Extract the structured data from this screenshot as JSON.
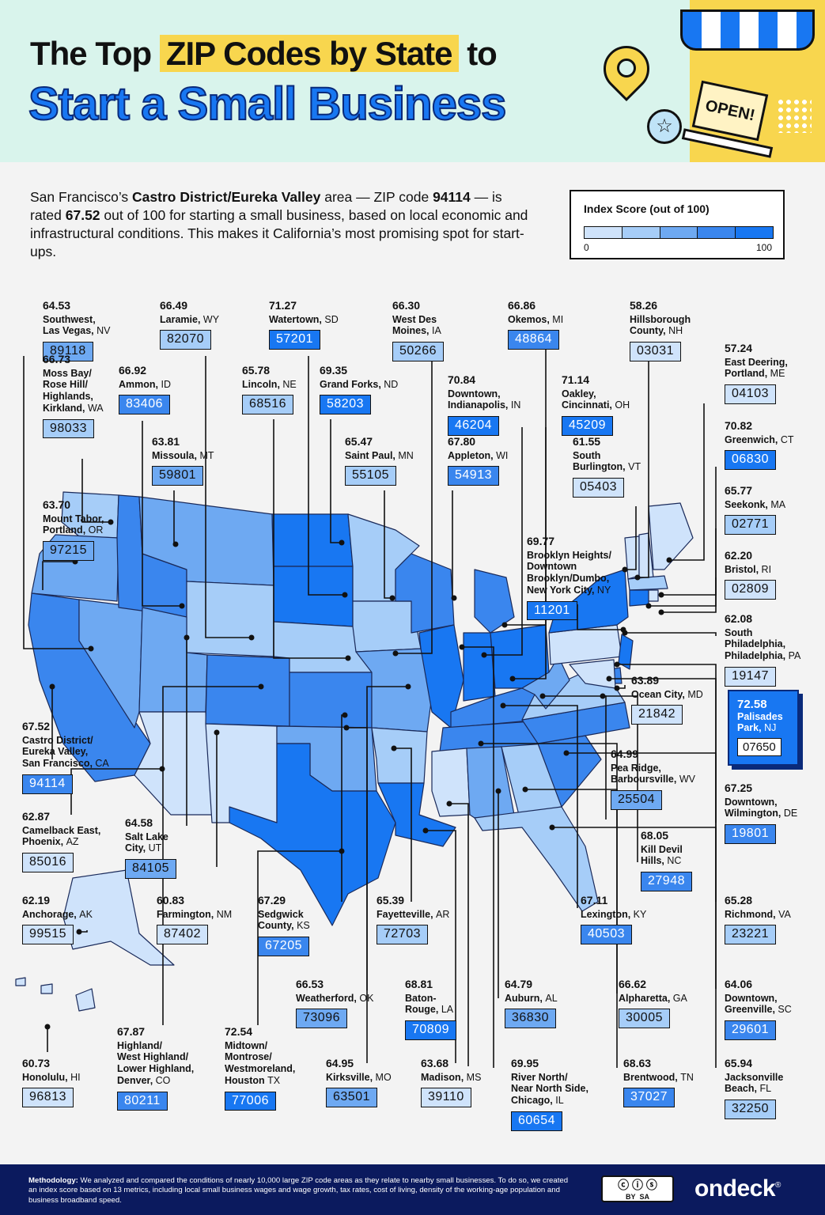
{
  "header": {
    "title_pre": "The Top ",
    "title_highlight": "ZIP Codes by State",
    "title_post": " to",
    "title_line2": "Start a Small Business",
    "sign_text": "OPEN!"
  },
  "intro": {
    "part1": "San Francisco’s ",
    "area": "Castro District/Eureka Valley",
    "part2": " area — ZIP code ",
    "zip": "94114",
    "part3": " — is rated ",
    "score": "67.52",
    "part4": " out of 100 for starting a small business, based on local economic and infrastructural conditions. This makes it California’s most promising spot for start-ups."
  },
  "legend": {
    "title": "Index Score (out of 100)",
    "min": "0",
    "max": "100",
    "colors": [
      "#cfe3fb",
      "#a6cdf8",
      "#6ea9f2",
      "#3a86ee",
      "#1877f2"
    ]
  },
  "map_colors": {
    "water_outline": "#1a2a5a",
    "c1": "#cfe3fb",
    "c2": "#a6cdf8",
    "c3": "#6ea9f2",
    "c4": "#3a86ee",
    "c5": "#1877f2"
  },
  "chart_data": {
    "type": "table",
    "columns": [
      "state",
      "area",
      "index_score",
      "zip"
    ],
    "rows": [
      [
        "NV",
        "Southwest, Las Vegas",
        64.53,
        "89118"
      ],
      [
        "WY",
        "Laramie",
        66.49,
        "82070"
      ],
      [
        "SD",
        "Watertown",
        71.27,
        "57201"
      ],
      [
        "IA",
        "West Des Moines",
        66.3,
        "50266"
      ],
      [
        "MI",
        "Okemos",
        66.86,
        "48864"
      ],
      [
        "NH",
        "Hillsborough County",
        58.26,
        "03031"
      ],
      [
        "WA",
        "Moss Bay/Rose Hill/Highlands, Kirkland",
        66.73,
        "98033"
      ],
      [
        "ID",
        "Ammon",
        66.92,
        "83406"
      ],
      [
        "NE",
        "Lincoln",
        65.78,
        "68516"
      ],
      [
        "ND",
        "Grand Forks",
        69.35,
        "58203"
      ],
      [
        "IN",
        "Downtown, Indianapolis",
        70.84,
        "46204"
      ],
      [
        "OH",
        "Oakley, Cincinnati",
        71.14,
        "45209"
      ],
      [
        "ME",
        "East Deering, Portland",
        57.24,
        "04103"
      ],
      [
        "MT",
        "Missoula",
        63.81,
        "59801"
      ],
      [
        "MN",
        "Saint Paul",
        65.47,
        "55105"
      ],
      [
        "WI",
        "Appleton",
        67.8,
        "54913"
      ],
      [
        "VT",
        "South Burlington",
        61.55,
        "05403"
      ],
      [
        "CT",
        "Greenwich",
        70.82,
        "06830"
      ],
      [
        "OR",
        "Mount Tabor, Portland",
        63.7,
        "97215"
      ],
      [
        "MA",
        "Seekonk",
        65.77,
        "02771"
      ],
      [
        "NY",
        "Brooklyn Heights/Downtown Brooklyn/Dumbo, New York City",
        69.77,
        "11201"
      ],
      [
        "RI",
        "Bristol",
        62.2,
        "02809"
      ],
      [
        "PA",
        "South Philadelphia, Philadelphia",
        62.08,
        "19147"
      ],
      [
        "NJ",
        "Palisades Park",
        72.58,
        "07650"
      ],
      [
        "MD",
        "Ocean City",
        63.89,
        "21842"
      ],
      [
        "CA",
        "Castro District/Eureka Valley, San Francisco",
        67.52,
        "94114"
      ],
      [
        "WV",
        "Pea Ridge, Barboursville",
        64.99,
        "25504"
      ],
      [
        "DE",
        "Downtown, Wilmington",
        67.25,
        "19801"
      ],
      [
        "AZ",
        "Camelback East, Phoenix",
        62.87,
        "85016"
      ],
      [
        "UT",
        "Salt Lake City",
        64.58,
        "84105"
      ],
      [
        "NC",
        "Kill Devil Hills",
        68.05,
        "27948"
      ],
      [
        "AK",
        "Anchorage",
        62.19,
        "99515"
      ],
      [
        "NM",
        "Farmington",
        60.83,
        "87402"
      ],
      [
        "KS",
        "Sedgwick County",
        67.29,
        "67205"
      ],
      [
        "AR",
        "Fayetteville",
        65.39,
        "72703"
      ],
      [
        "KY",
        "Lexington",
        67.11,
        "40503"
      ],
      [
        "VA",
        "Richmond",
        65.28,
        "23221"
      ],
      [
        "OK",
        "Weatherford",
        66.53,
        "73096"
      ],
      [
        "LA",
        "Baton-Rouge",
        68.81,
        "70809"
      ],
      [
        "AL",
        "Auburn",
        64.79,
        "36830"
      ],
      [
        "GA",
        "Alpharetta",
        66.62,
        "30005"
      ],
      [
        "SC",
        "Downtown, Greenville",
        64.06,
        "29601"
      ],
      [
        "HI",
        "Honolulu",
        60.73,
        "96813"
      ],
      [
        "CO",
        "Highland/West Highland/Lower Highland, Denver",
        67.87,
        "80211"
      ],
      [
        "TX",
        "Midtown/Montrose/Westmoreland, Houston",
        72.54,
        "77006"
      ],
      [
        "MO",
        "Kirksville",
        64.95,
        "63501"
      ],
      [
        "MS",
        "Madison",
        63.68,
        "39110"
      ],
      [
        "IL",
        "River North/Near North Side, Chicago",
        69.95,
        "60654"
      ],
      [
        "TN",
        "Brentwood",
        68.63,
        "37027"
      ],
      [
        "FL",
        "Jacksonville Beach",
        65.94,
        "32250"
      ]
    ]
  },
  "callouts": [
    {
      "id": "nv",
      "score": "64.53",
      "name": "Southwest,\nLas Vegas,",
      "st": "NV",
      "zip": "89118",
      "c": "c3"
    },
    {
      "id": "wy",
      "score": "66.49",
      "name": "Laramie,",
      "st": "WY",
      "zip": "82070",
      "c": "c2"
    },
    {
      "id": "sd",
      "score": "71.27",
      "name": "Watertown,",
      "st": "SD",
      "zip": "57201",
      "c": "c5"
    },
    {
      "id": "ia",
      "score": "66.30",
      "name": "West Des\nMoines,",
      "st": "IA",
      "zip": "50266",
      "c": "c2"
    },
    {
      "id": "mi",
      "score": "66.86",
      "name": "Okemos,",
      "st": "MI",
      "zip": "48864",
      "c": "c4"
    },
    {
      "id": "nh",
      "score": "58.26",
      "name": "Hillsborough\nCounty,",
      "st": "NH",
      "zip": "03031",
      "c": "c1"
    },
    {
      "id": "wa",
      "score": "66.73",
      "name": "Moss Bay/\nRose Hill/\nHighlands,\nKirkland,",
      "st": "WA",
      "zip": "98033",
      "c": "c2"
    },
    {
      "id": "id",
      "score": "66.92",
      "name": "Ammon,",
      "st": "ID",
      "zip": "83406",
      "c": "c4"
    },
    {
      "id": "ne",
      "score": "65.78",
      "name": "Lincoln,",
      "st": "NE",
      "zip": "68516",
      "c": "c2"
    },
    {
      "id": "nd",
      "score": "69.35",
      "name": "Grand Forks,",
      "st": "ND",
      "zip": "58203",
      "c": "c5"
    },
    {
      "id": "in",
      "score": "70.84",
      "name": "Downtown,\nIndianapolis,",
      "st": "IN",
      "zip": "46204",
      "c": "c5"
    },
    {
      "id": "oh",
      "score": "71.14",
      "name": "Oakley,\nCincinnati,",
      "st": "OH",
      "zip": "45209",
      "c": "c5"
    },
    {
      "id": "me",
      "score": "57.24",
      "name": "East Deering,\nPortland,",
      "st": "ME",
      "zip": "04103",
      "c": "c1"
    },
    {
      "id": "mt",
      "score": "63.81",
      "name": "Missoula,",
      "st": "MT",
      "zip": "59801",
      "c": "c3"
    },
    {
      "id": "mn",
      "score": "65.47",
      "name": "Saint Paul,",
      "st": "MN",
      "zip": "55105",
      "c": "c2"
    },
    {
      "id": "wi",
      "score": "67.80",
      "name": "Appleton,",
      "st": "WI",
      "zip": "54913",
      "c": "c4"
    },
    {
      "id": "vt",
      "score": "61.55",
      "name": "South\nBurlington,",
      "st": "VT",
      "zip": "05403",
      "c": "c1"
    },
    {
      "id": "ct",
      "score": "70.82",
      "name": "Greenwich,",
      "st": "CT",
      "zip": "06830",
      "c": "c5"
    },
    {
      "id": "or",
      "score": "63.70",
      "name": "Mount Tabor,\nPortland,",
      "st": "OR",
      "zip": "97215",
      "c": "c3"
    },
    {
      "id": "ma",
      "score": "65.77",
      "name": "Seekonk,",
      "st": "MA",
      "zip": "02771",
      "c": "c2"
    },
    {
      "id": "ny",
      "score": "69.77",
      "name": "Brooklyn Heights/\nDowntown\nBrooklyn/Dumbo,\nNew York City,",
      "st": "NY",
      "zip": "11201",
      "c": "c5"
    },
    {
      "id": "ri",
      "score": "62.20",
      "name": "Bristol,",
      "st": "RI",
      "zip": "02809",
      "c": "c1"
    },
    {
      "id": "pa",
      "score": "62.08",
      "name": "South\nPhiladelphia,\nPhiladelphia,",
      "st": "PA",
      "zip": "19147",
      "c": "c1"
    },
    {
      "id": "md",
      "score": "63.89",
      "name": "Ocean City,",
      "st": "MD",
      "zip": "21842",
      "c": "c1"
    },
    {
      "id": "ca",
      "score": "67.52",
      "name": "Castro District/\nEureka Valley,\nSan Francisco,",
      "st": "CA",
      "zip": "94114",
      "c": "c4"
    },
    {
      "id": "wv",
      "score": "64.99",
      "name": "Pea Ridge,\nBarboursville,",
      "st": "WV",
      "zip": "25504",
      "c": "c3"
    },
    {
      "id": "de",
      "score": "67.25",
      "name": "Downtown,\nWilmington,",
      "st": "DE",
      "zip": "19801",
      "c": "c4"
    },
    {
      "id": "az",
      "score": "62.87",
      "name": "Camelback East,\nPhoenix,",
      "st": "AZ",
      "zip": "85016",
      "c": "c1"
    },
    {
      "id": "ut",
      "score": "64.58",
      "name": "Salt Lake\nCity,",
      "st": "UT",
      "zip": "84105",
      "c": "c3"
    },
    {
      "id": "nc",
      "score": "68.05",
      "name": "Kill Devil\nHills,",
      "st": "NC",
      "zip": "27948",
      "c": "c4"
    },
    {
      "id": "ak",
      "score": "62.19",
      "name": "Anchorage,",
      "st": "AK",
      "zip": "99515",
      "c": "c1"
    },
    {
      "id": "nm",
      "score": "60.83",
      "name": "Farmington,",
      "st": "NM",
      "zip": "87402",
      "c": "c1"
    },
    {
      "id": "ks",
      "score": "67.29",
      "name": "Sedgwick\nCounty,",
      "st": "KS",
      "zip": "67205",
      "c": "c4"
    },
    {
      "id": "ar",
      "score": "65.39",
      "name": "Fayetteville,",
      "st": "AR",
      "zip": "72703",
      "c": "c2"
    },
    {
      "id": "ky",
      "score": "67.11",
      "name": "Lexington,",
      "st": "KY",
      "zip": "40503",
      "c": "c4"
    },
    {
      "id": "va",
      "score": "65.28",
      "name": "Richmond,",
      "st": "VA",
      "zip": "23221",
      "c": "c2"
    },
    {
      "id": "ok",
      "score": "66.53",
      "name": "Weatherford,",
      "st": "OK",
      "zip": "73096",
      "c": "c3"
    },
    {
      "id": "la",
      "score": "68.81",
      "name": "Baton-\nRouge,",
      "st": "LA",
      "zip": "70809",
      "c": "c5"
    },
    {
      "id": "al",
      "score": "64.79",
      "name": "Auburn,",
      "st": "AL",
      "zip": "36830",
      "c": "c3"
    },
    {
      "id": "ga",
      "score": "66.62",
      "name": "Alpharetta,",
      "st": "GA",
      "zip": "30005",
      "c": "c2"
    },
    {
      "id": "sc",
      "score": "64.06",
      "name": "Downtown,\nGreenville,",
      "st": "SC",
      "zip": "29601",
      "c": "c4"
    },
    {
      "id": "hi",
      "score": "60.73",
      "name": "Honolulu,",
      "st": "HI",
      "zip": "96813",
      "c": "c1"
    },
    {
      "id": "co",
      "score": "67.87",
      "name": "Highland/\nWest Highland/\nLower Highland,\nDenver,",
      "st": "CO",
      "zip": "80211",
      "c": "c4"
    },
    {
      "id": "tx",
      "score": "72.54",
      "name": "Midtown/\nMontrose/\nWestmoreland,\nHouston",
      "st": "TX",
      "zip": "77006",
      "c": "c5"
    },
    {
      "id": "mo",
      "score": "64.95",
      "name": "Kirksville,",
      "st": "MO",
      "zip": "63501",
      "c": "c3"
    },
    {
      "id": "ms",
      "score": "63.68",
      "name": "Madison,",
      "st": "MS",
      "zip": "39110",
      "c": "c1"
    },
    {
      "id": "il",
      "score": "69.95",
      "name": "River North/\nNear North Side,\nChicago,",
      "st": "IL",
      "zip": "60654",
      "c": "c5"
    },
    {
      "id": "tn",
      "score": "68.63",
      "name": "Brentwood,",
      "st": "TN",
      "zip": "37027",
      "c": "c4"
    },
    {
      "id": "fl",
      "score": "65.94",
      "name": "Jacksonville\nBeach,",
      "st": "FL",
      "zip": "32250",
      "c": "c2"
    }
  ],
  "featured": {
    "score": "72.58",
    "name": "Palisades\nPark,",
    "st": "NJ",
    "zip": "07650"
  },
  "footer": {
    "label": "Methodology:",
    "text": " We analyzed and compared the conditions of nearly 10,000 large ZIP code areas as they relate to nearby small businesses. To do so, we created an index score based on 13 metrics, including local small business wages and wage growth, tax rates, cost of living, density of the working-age population and business broadband speed.",
    "license_by": "BY",
    "license_sa": "SA",
    "brand": "ondeck",
    "brand_mark": "®"
  }
}
